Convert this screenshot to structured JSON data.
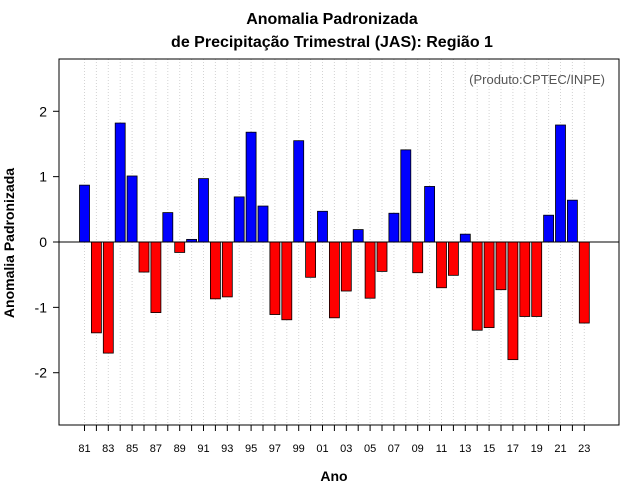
{
  "chart_data": {
    "type": "bar",
    "title_line1": "Anomalia Padronizada",
    "title_line2": "de Precipitação Trimestral (JAS): Região 1",
    "credit": "(Produto:CPTEC/INPE)",
    "xlabel": "Ano",
    "ylabel": "Anomalia Padronizada",
    "ylim": [
      -2.8,
      2.8
    ],
    "yticks": [
      -2,
      -1,
      0,
      1,
      2
    ],
    "ytick_labels": [
      "-2",
      "-1",
      "0",
      "1",
      "2"
    ],
    "categories": [
      "81",
      "82",
      "83",
      "84",
      "85",
      "86",
      "87",
      "88",
      "89",
      "90",
      "91",
      "92",
      "93",
      "94",
      "95",
      "96",
      "97",
      "98",
      "99",
      "00",
      "01",
      "02",
      "03",
      "04",
      "05",
      "06",
      "07",
      "08",
      "09",
      "10",
      "11",
      "12",
      "13",
      "14",
      "15",
      "16",
      "17",
      "18",
      "19",
      "20",
      "21",
      "22",
      "23"
    ],
    "xtick_labels": [
      "81",
      "83",
      "85",
      "87",
      "89",
      "91",
      "93",
      "95",
      "97",
      "99",
      "01",
      "03",
      "05",
      "07",
      "09",
      "11",
      "13",
      "15",
      "17",
      "19",
      "21",
      "23"
    ],
    "values": [
      0.87,
      -1.39,
      -1.7,
      1.82,
      1.01,
      -0.46,
      -1.08,
      0.45,
      -0.16,
      0.04,
      0.97,
      -0.87,
      -0.84,
      0.69,
      1.68,
      0.55,
      -1.11,
      -1.19,
      1.55,
      -0.54,
      0.47,
      -1.16,
      -0.75,
      0.19,
      -0.86,
      -0.45,
      0.44,
      1.41,
      -0.47,
      0.85,
      -0.7,
      -0.51,
      0.12,
      -1.35,
      -1.31,
      -0.73,
      -1.8,
      -1.14,
      -1.14,
      0.41,
      1.79,
      0.64,
      -1.24
    ],
    "colors": {
      "positive": "#0000ff",
      "negative": "#ff0000",
      "outline": "#000000",
      "grid": "#d3d3d3",
      "zero_line": "#000000"
    },
    "grid": true
  }
}
